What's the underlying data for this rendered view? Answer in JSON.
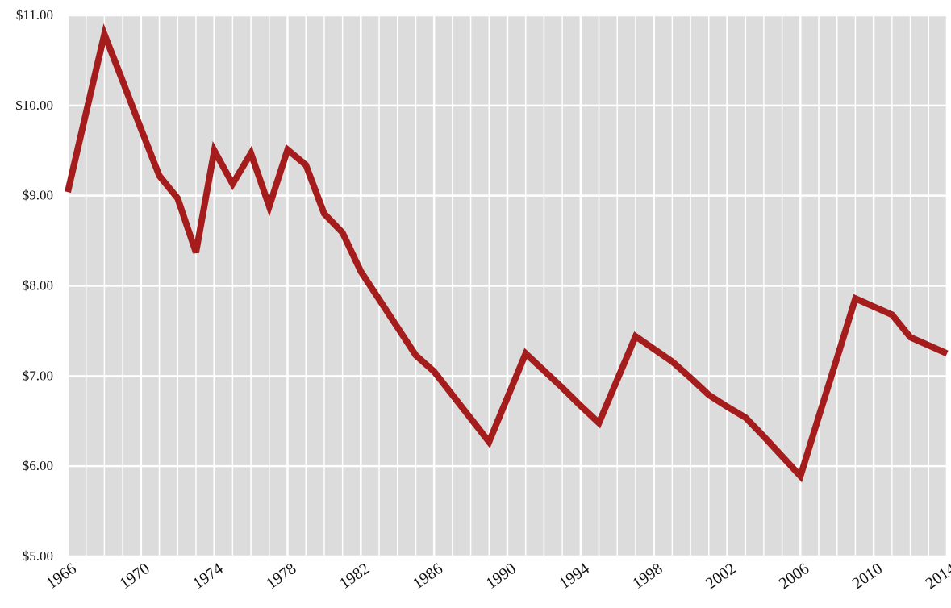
{
  "chart_data": {
    "type": "line",
    "x": [
      1966,
      1967,
      1968,
      1969,
      1970,
      1971,
      1972,
      1973,
      1974,
      1975,
      1976,
      1977,
      1978,
      1979,
      1980,
      1981,
      1982,
      1983,
      1984,
      1985,
      1986,
      1987,
      1988,
      1989,
      1990,
      1991,
      1992,
      1993,
      1994,
      1995,
      1996,
      1997,
      1998,
      1999,
      2000,
      2001,
      2002,
      2003,
      2004,
      2005,
      2006,
      2007,
      2008,
      2009,
      2010,
      2011,
      2012,
      2013,
      2014
    ],
    "series": [
      {
        "color": "#a51c1c",
        "values": [
          9.04,
          9.92,
          10.79,
          10.27,
          9.74,
          9.22,
          8.97,
          8.37,
          9.5,
          9.13,
          9.47,
          8.88,
          9.51,
          9.34,
          8.8,
          8.59,
          8.16,
          7.85,
          7.54,
          7.23,
          7.05,
          6.79,
          6.53,
          6.27,
          6.76,
          7.25,
          7.06,
          6.87,
          6.67,
          6.48,
          6.96,
          7.44,
          7.3,
          7.16,
          6.98,
          6.79,
          6.66,
          6.54,
          6.33,
          6.11,
          5.89,
          6.55,
          7.2,
          7.86,
          7.77,
          7.68,
          7.43,
          7.34,
          7.25
        ]
      }
    ],
    "xlim": [
      1966,
      2014
    ],
    "xticks": [
      1966,
      1970,
      1974,
      1978,
      1982,
      1986,
      1990,
      1994,
      1998,
      2002,
      2006,
      2010,
      2014
    ],
    "ylim": [
      5,
      11
    ],
    "yticks": [
      {
        "value": 5,
        "label": "$5.00"
      },
      {
        "value": 6,
        "label": "$6.00"
      },
      {
        "value": 7,
        "label": "$7.00"
      },
      {
        "value": 8,
        "label": "$8.00"
      },
      {
        "value": 9,
        "label": "$9.00"
      },
      {
        "value": 10,
        "label": "$10.00"
      },
      {
        "value": 11,
        "label": "$11.00"
      }
    ],
    "grid": true
  }
}
